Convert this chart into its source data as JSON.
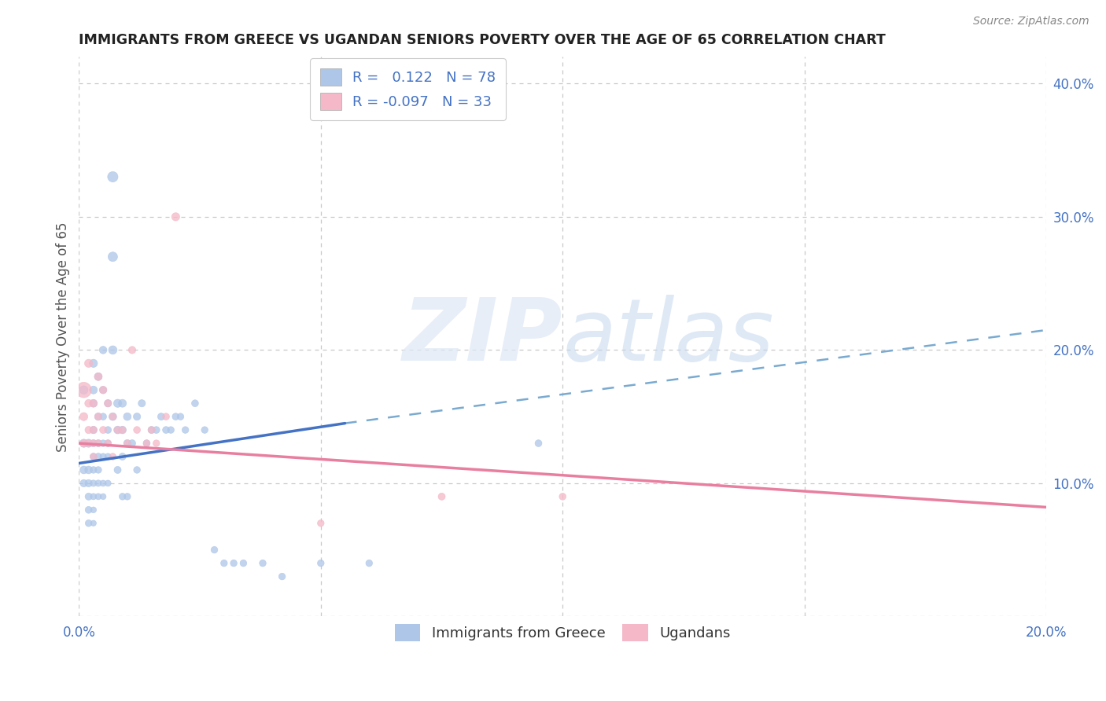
{
  "title": "IMMIGRANTS FROM GREECE VS UGANDAN SENIORS POVERTY OVER THE AGE OF 65 CORRELATION CHART",
  "source": "Source: ZipAtlas.com",
  "ylabel": "Seniors Poverty Over the Age of 65",
  "xlim": [
    0.0,
    0.2
  ],
  "ylim": [
    0.0,
    0.42
  ],
  "xticks": [
    0.0,
    0.05,
    0.1,
    0.15,
    0.2
  ],
  "yticks": [
    0.0,
    0.1,
    0.2,
    0.3,
    0.4
  ],
  "legend_label1": "Immigrants from Greece",
  "legend_label2": "Ugandans",
  "R1": 0.122,
  "N1": 78,
  "R2": -0.097,
  "N2": 33,
  "color1": "#aec6e8",
  "color2": "#f4b8c8",
  "trend1_color": "#4472c4",
  "trend2_color": "#e87fa0",
  "trend_dash_color": "#7aaad0",
  "watermark_zip": "ZIP",
  "watermark_atlas": "atlas",
  "background_color": "#ffffff",
  "trend1_x0": 0.0,
  "trend1_y0": 0.115,
  "trend1_x1": 0.055,
  "trend1_y1": 0.145,
  "trend1_dash_x0": 0.055,
  "trend1_dash_y0": 0.145,
  "trend1_dash_x1": 0.2,
  "trend1_dash_y1": 0.215,
  "trend2_x0": 0.0,
  "trend2_y0": 0.13,
  "trend2_x1": 0.2,
  "trend2_y1": 0.082,
  "scatter1_x": [
    0.001,
    0.001,
    0.001,
    0.001,
    0.002,
    0.002,
    0.002,
    0.002,
    0.002,
    0.002,
    0.003,
    0.003,
    0.003,
    0.003,
    0.003,
    0.003,
    0.003,
    0.003,
    0.003,
    0.003,
    0.003,
    0.004,
    0.004,
    0.004,
    0.004,
    0.004,
    0.004,
    0.004,
    0.005,
    0.005,
    0.005,
    0.005,
    0.005,
    0.005,
    0.005,
    0.006,
    0.006,
    0.006,
    0.006,
    0.006,
    0.007,
    0.007,
    0.007,
    0.007,
    0.008,
    0.008,
    0.008,
    0.009,
    0.009,
    0.009,
    0.009,
    0.01,
    0.01,
    0.01,
    0.011,
    0.012,
    0.012,
    0.013,
    0.014,
    0.015,
    0.016,
    0.017,
    0.018,
    0.019,
    0.02,
    0.021,
    0.022,
    0.024,
    0.026,
    0.028,
    0.03,
    0.032,
    0.034,
    0.038,
    0.042,
    0.05,
    0.06,
    0.095
  ],
  "scatter1_y": [
    0.17,
    0.13,
    0.11,
    0.1,
    0.13,
    0.11,
    0.1,
    0.09,
    0.08,
    0.07,
    0.19,
    0.17,
    0.16,
    0.14,
    0.13,
    0.12,
    0.11,
    0.1,
    0.09,
    0.08,
    0.07,
    0.18,
    0.15,
    0.13,
    0.12,
    0.11,
    0.1,
    0.09,
    0.2,
    0.17,
    0.15,
    0.13,
    0.12,
    0.1,
    0.09,
    0.16,
    0.14,
    0.13,
    0.12,
    0.1,
    0.33,
    0.27,
    0.2,
    0.15,
    0.16,
    0.14,
    0.11,
    0.16,
    0.14,
    0.12,
    0.09,
    0.15,
    0.13,
    0.09,
    0.13,
    0.15,
    0.11,
    0.16,
    0.13,
    0.14,
    0.14,
    0.15,
    0.14,
    0.14,
    0.15,
    0.15,
    0.14,
    0.16,
    0.14,
    0.05,
    0.04,
    0.04,
    0.04,
    0.04,
    0.03,
    0.04,
    0.04,
    0.13
  ],
  "scatter1_size": [
    60,
    55,
    50,
    45,
    55,
    50,
    45,
    42,
    40,
    38,
    55,
    52,
    48,
    45,
    42,
    40,
    38,
    35,
    33,
    30,
    28,
    50,
    45,
    42,
    40,
    38,
    35,
    33,
    48,
    44,
    40,
    38,
    35,
    32,
    30,
    44,
    40,
    38,
    35,
    32,
    90,
    75,
    60,
    50,
    55,
    50,
    42,
    52,
    48,
    42,
    38,
    50,
    45,
    38,
    42,
    45,
    38,
    44,
    40,
    42,
    40,
    42,
    40,
    38,
    40,
    38,
    38,
    40,
    38,
    38,
    38,
    38,
    38,
    38,
    38,
    38,
    38,
    40
  ],
  "scatter2_x": [
    0.001,
    0.001,
    0.001,
    0.002,
    0.002,
    0.002,
    0.002,
    0.003,
    0.003,
    0.003,
    0.003,
    0.004,
    0.004,
    0.004,
    0.005,
    0.005,
    0.006,
    0.006,
    0.007,
    0.007,
    0.008,
    0.009,
    0.01,
    0.011,
    0.012,
    0.014,
    0.015,
    0.016,
    0.018,
    0.02,
    0.05,
    0.075,
    0.1
  ],
  "scatter2_y": [
    0.17,
    0.15,
    0.13,
    0.19,
    0.16,
    0.14,
    0.13,
    0.16,
    0.14,
    0.13,
    0.12,
    0.18,
    0.15,
    0.13,
    0.17,
    0.14,
    0.16,
    0.13,
    0.15,
    0.12,
    0.14,
    0.14,
    0.13,
    0.2,
    0.14,
    0.13,
    0.14,
    0.13,
    0.15,
    0.3,
    0.07,
    0.09,
    0.09
  ],
  "scatter2_size": [
    200,
    55,
    50,
    55,
    50,
    45,
    42,
    50,
    45,
    42,
    38,
    50,
    45,
    40,
    48,
    42,
    45,
    40,
    42,
    38,
    40,
    40,
    38,
    45,
    40,
    38,
    40,
    38,
    40,
    55,
    38,
    42,
    40
  ]
}
